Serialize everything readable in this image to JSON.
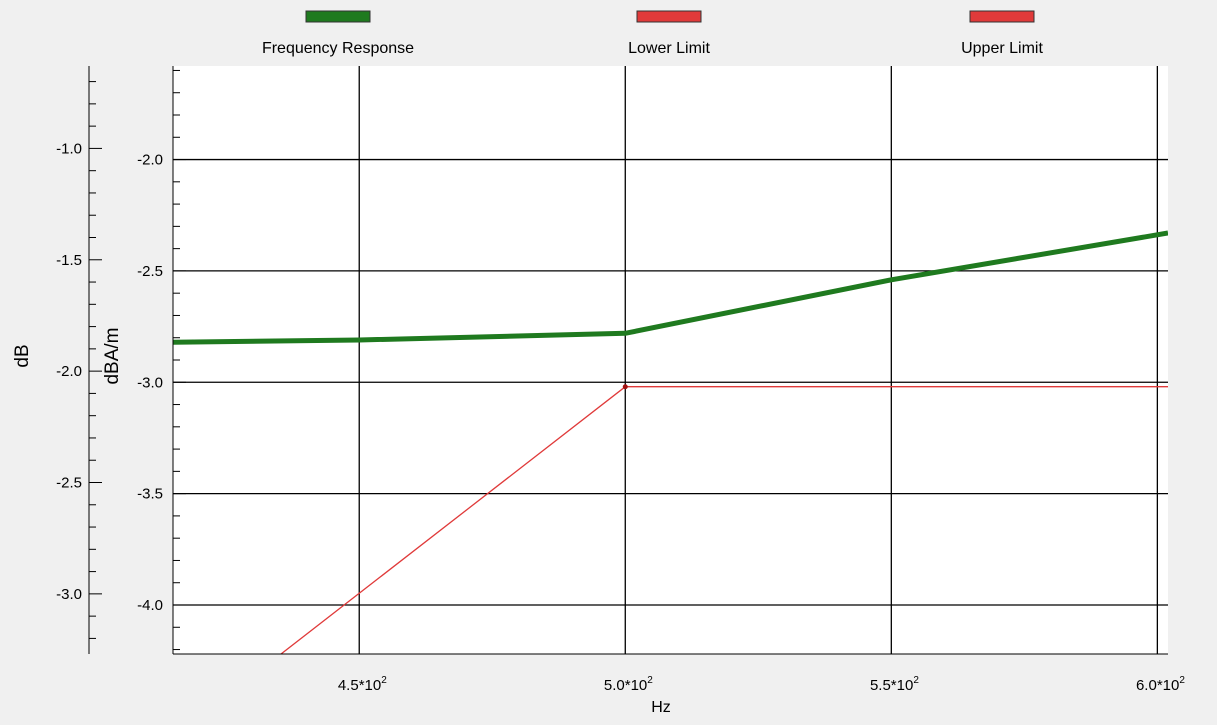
{
  "chart_data": {
    "type": "line",
    "title": "",
    "xlabel": "Hz",
    "ylabel": "dBA/m",
    "y2label": "dB",
    "grid": true,
    "legend_position": "top",
    "x_ticks": [
      {
        "value": 450,
        "base": "4.5*10",
        "exp": "2"
      },
      {
        "value": 500,
        "base": "5.0*10",
        "exp": "2"
      },
      {
        "value": 550,
        "base": "5.5*10",
        "exp": "2"
      },
      {
        "value": 600,
        "base": "6.0*10",
        "exp": "2"
      }
    ],
    "xlim": [
      415,
      602
    ],
    "ylim": [
      -4.22,
      -1.58
    ],
    "y_ticks": [
      "-2.0",
      "-2.5",
      "-3.0",
      "-3.5",
      "-4.0"
    ],
    "y2lim": [
      -3.27,
      -0.63
    ],
    "y2_ticks": [
      "-1.0",
      "-1.5",
      "-2.0",
      "-2.5",
      "-3.0"
    ],
    "series": [
      {
        "name": "Frequency Response",
        "color": "#1f7a1f",
        "x": [
          415,
          450,
          500,
          550,
          602
        ],
        "y": [
          -2.82,
          -2.81,
          -2.78,
          -2.54,
          -2.33
        ]
      },
      {
        "name": "Lower Limit",
        "color": "#e03a3a",
        "x": [
          431,
          500,
          602
        ],
        "y": [
          -4.3,
          -3.02,
          -3.02
        ]
      },
      {
        "name": "Upper Limit",
        "color": "#e03a3a",
        "x": [],
        "y": []
      }
    ]
  }
}
